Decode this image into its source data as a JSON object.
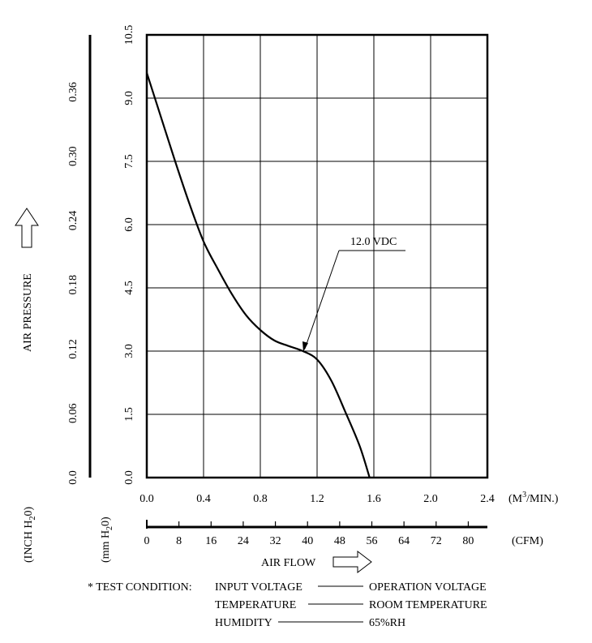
{
  "chart_data": {
    "type": "line",
    "title": "",
    "series": [
      {
        "name": "12.0 VDC",
        "points": [
          [
            0.0,
            9.6
          ],
          [
            0.1,
            8.55
          ],
          [
            0.2,
            7.5
          ],
          [
            0.3,
            6.5
          ],
          [
            0.4,
            5.6
          ],
          [
            0.5,
            4.95
          ],
          [
            0.6,
            4.35
          ],
          [
            0.7,
            3.85
          ],
          [
            0.8,
            3.5
          ],
          [
            0.9,
            3.25
          ],
          [
            1.0,
            3.12
          ],
          [
            1.1,
            3.0
          ],
          [
            1.2,
            2.8
          ],
          [
            1.3,
            2.3
          ],
          [
            1.4,
            1.55
          ],
          [
            1.5,
            0.75
          ],
          [
            1.57,
            0.0
          ]
        ]
      }
    ],
    "xlim": [
      0.0,
      2.4
    ],
    "ylim": [
      0.0,
      10.5
    ],
    "grid": true,
    "x_ticks": [
      "0.0",
      "0.4",
      "0.8",
      "1.2",
      "1.6",
      "2.0",
      "2.4"
    ],
    "x_unit": "(M3/MIN.)",
    "cfm_ticks": [
      "0",
      "8",
      "16",
      "24",
      "32",
      "40",
      "48",
      "56",
      "64",
      "72",
      "80"
    ],
    "cfm_unit": "(CFM)",
    "xlabel": "AIR FLOW",
    "y_ticks_mm": [
      "0.0",
      "1.5",
      "3.0",
      "4.5",
      "6.0",
      "7.5",
      "9.0",
      "10.5"
    ],
    "y_ticks_inch": [
      "0.0",
      "0.06",
      "0.12",
      "0.18",
      "0.24",
      "0.30",
      "0.36"
    ],
    "ylabel": "AIR PRESSURE",
    "y_unit_mm": "(mm H2O)",
    "y_unit_inch": "(INCH H2O)",
    "annotation": "12.0 VDC"
  },
  "test_condition": {
    "prefix": "* TEST CONDITION:",
    "rows": [
      {
        "label": "INPUT VOLTAGE",
        "value": "OPERATION VOLTAGE"
      },
      {
        "label": "TEMPERATURE",
        "value": "ROOM TEMPERATURE"
      },
      {
        "label": "HUMIDITY",
        "value": "65%RH"
      }
    ]
  }
}
